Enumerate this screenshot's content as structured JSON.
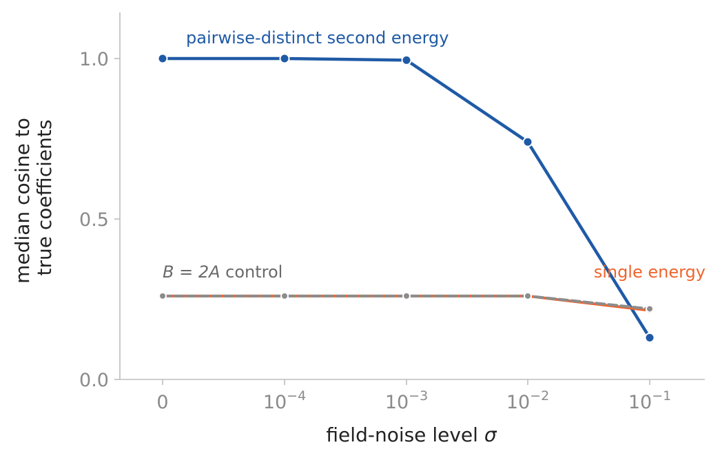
{
  "chart_data": {
    "type": "line",
    "xlabel": "field-noise level",
    "xlabel_symbol": "σ",
    "ylabel_lines": [
      "median cosine to",
      "true coefficients"
    ],
    "x_ticks": [
      {
        "base": "0",
        "exp": ""
      },
      {
        "base": "10",
        "exp": "−4"
      },
      {
        "base": "10",
        "exp": "−3"
      },
      {
        "base": "10",
        "exp": "−2"
      },
      {
        "base": "10",
        "exp": "−1"
      }
    ],
    "x_values": [
      0,
      0.0001,
      0.001,
      0.01,
      0.1
    ],
    "y_ticks": [
      "0.0",
      "0.5",
      "1.0"
    ],
    "ylim": [
      0,
      1.15
    ],
    "grid": false,
    "series": [
      {
        "key": "pairwise",
        "name": "pairwise-distinct second energy",
        "color": "#1f5aa6",
        "dashed": false,
        "values": [
          1.0,
          1.0,
          0.995,
          0.74,
          0.13
        ]
      },
      {
        "key": "single",
        "name": "single energy",
        "color": "#f0642d",
        "dashed": false,
        "values": [
          0.26,
          0.26,
          0.26,
          0.26,
          0.215
        ]
      },
      {
        "key": "control",
        "name_prefix": "B = 2A",
        "name_suffix": " control",
        "color": "#8c8c8c",
        "dashed": true,
        "values": [
          0.26,
          0.26,
          0.26,
          0.26,
          0.22
        ]
      }
    ]
  }
}
